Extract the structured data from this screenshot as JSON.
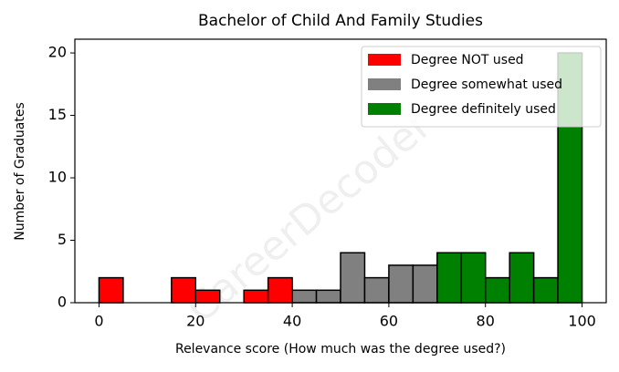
{
  "chart_data": {
    "type": "histogram",
    "title": "Bachelor of Child And Family Studies",
    "xlabel": "Relevance score (How much was the degree used?)",
    "ylabel": "Number of Graduates",
    "watermark": "CareerDecoder",
    "series": [
      {
        "name": "Degree NOT used",
        "color": "#ff0000",
        "bins": [
          0,
          5,
          10,
          15,
          20,
          25,
          30,
          35,
          40
        ],
        "values": [
          2,
          0,
          0,
          2,
          1,
          0,
          1,
          2
        ]
      },
      {
        "name": "Degree somewhat used",
        "color": "#808080",
        "bins": [
          40,
          45,
          50,
          55,
          60,
          65,
          70
        ],
        "values": [
          1,
          1,
          4,
          2,
          3,
          3
        ]
      },
      {
        "name": "Degree definitely used",
        "color": "#008000",
        "bins": [
          70,
          75,
          80,
          85,
          90,
          95,
          100
        ],
        "values": [
          4,
          4,
          2,
          4,
          2,
          20
        ]
      }
    ],
    "xlim": [
      -5,
      105
    ],
    "ylim": [
      0,
      21.1
    ],
    "xticks": [
      0,
      20,
      40,
      60,
      80,
      100
    ],
    "yticks": [
      0,
      5,
      10,
      15,
      20
    ],
    "legend": "upper right"
  }
}
